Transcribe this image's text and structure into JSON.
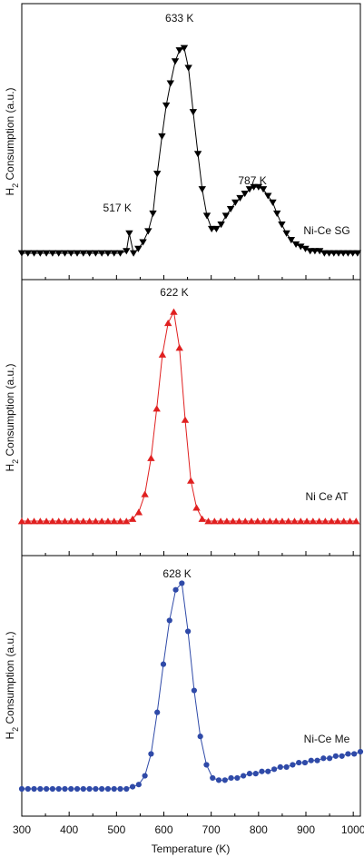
{
  "chart_data": {
    "type": "line",
    "xlabel": "Temperature (K)",
    "xlim": [
      300,
      1015
    ],
    "xticks": [
      300,
      400,
      500,
      600,
      700,
      800,
      900,
      1000
    ],
    "panels": [
      {
        "ylabel": "H2 Consumption (a.u.)",
        "ylim": [
          0,
          1
        ],
        "series": {
          "name": "Ni-Ce SG",
          "color": "#000000",
          "marker": "triangle-down",
          "x": [
            300,
            313,
            326,
            339,
            352,
            365,
            378,
            391,
            404,
            417,
            430,
            443,
            456,
            469,
            482,
            495,
            508,
            521,
            527,
            536,
            546,
            556,
            567,
            577,
            586,
            596,
            605,
            614,
            624,
            633,
            643,
            652,
            662,
            672,
            681,
            691,
            701,
            711,
            721,
            731,
            741,
            751,
            761,
            771,
            781,
            790,
            800,
            810,
            820,
            830,
            839,
            849,
            859,
            869,
            879,
            889,
            899,
            909,
            919,
            929,
            939,
            949,
            959,
            969,
            979,
            989,
            999,
            1009
          ],
          "y": [
            0,
            0,
            0,
            0,
            0,
            0,
            0,
            0,
            0,
            0,
            0,
            0,
            0,
            0,
            0,
            0,
            0,
            0.01,
            0.09,
            0,
            0.02,
            0.05,
            0.1,
            0.18,
            0.36,
            0.53,
            0.67,
            0.77,
            0.87,
            0.92,
            0.93,
            0.84,
            0.64,
            0.45,
            0.29,
            0.17,
            0.11,
            0.11,
            0.13,
            0.17,
            0.2,
            0.23,
            0.25,
            0.27,
            0.29,
            0.3,
            0.3,
            0.29,
            0.26,
            0.23,
            0.18,
            0.13,
            0.09,
            0.06,
            0.04,
            0.03,
            0.02,
            0.01,
            0.01,
            0.01,
            0,
            0,
            0,
            0,
            0,
            0,
            0,
            0
          ]
        },
        "labels": [
          {
            "text": "633 K",
            "x": 633
          },
          {
            "text": "517 K",
            "x": 517
          },
          {
            "text": "787 K",
            "x": 787
          },
          {
            "text": "Ni-Ce SG",
            "x": 950
          }
        ]
      },
      {
        "ylabel": "H2 Consumption (a.u.)",
        "ylim": [
          0,
          1
        ],
        "series": {
          "name": "Ni Ce AT",
          "color": "#e02020",
          "marker": "triangle-up",
          "x": [
            300,
            313,
            326,
            339,
            352,
            365,
            378,
            391,
            404,
            417,
            430,
            443,
            456,
            469,
            482,
            495,
            508,
            521,
            534,
            547,
            560,
            573,
            585,
            597,
            609,
            621,
            633,
            645,
            657,
            669,
            681,
            694,
            707,
            720,
            733,
            746,
            759,
            772,
            785,
            798,
            811,
            824,
            837,
            850,
            863,
            876,
            889,
            902,
            915,
            928,
            941,
            954,
            967,
            980,
            993,
            1006
          ],
          "y": [
            0,
            0,
            0,
            0,
            0,
            0,
            0,
            0,
            0,
            0,
            0,
            0,
            0,
            0,
            0,
            0,
            0,
            0,
            0.01,
            0.04,
            0.12,
            0.28,
            0.5,
            0.74,
            0.88,
            0.93,
            0.77,
            0.45,
            0.18,
            0.06,
            0.01,
            0,
            0,
            0,
            0,
            0,
            0,
            0,
            0,
            0,
            0,
            0,
            0,
            0,
            0,
            0,
            0,
            0,
            0,
            0,
            0,
            0,
            0,
            0,
            0,
            0
          ]
        },
        "labels": [
          {
            "text": "622 K",
            "x": 622
          },
          {
            "text": "Ni Ce AT",
            "x": 950
          }
        ]
      },
      {
        "ylabel": "H2 Consumption (a.u.)",
        "ylim": [
          0,
          1
        ],
        "series": {
          "name": "Ni-Ce Me",
          "color": "#2f4aa8",
          "marker": "circle",
          "x": [
            300,
            313,
            326,
            339,
            352,
            365,
            378,
            391,
            404,
            417,
            430,
            443,
            456,
            469,
            482,
            495,
            508,
            521,
            534,
            547,
            560,
            573,
            586,
            599,
            612,
            625,
            638,
            651,
            664,
            677,
            690,
            703,
            716,
            729,
            742,
            755,
            768,
            781,
            794,
            807,
            820,
            833,
            846,
            859,
            872,
            885,
            898,
            911,
            924,
            937,
            950,
            963,
            976,
            989,
            1002,
            1015
          ],
          "y": [
            0,
            0,
            0,
            0,
            0,
            0,
            0,
            0,
            0,
            0,
            0,
            0,
            0,
            0,
            0,
            0,
            0,
            0,
            0.01,
            0.02,
            0.06,
            0.16,
            0.35,
            0.57,
            0.77,
            0.91,
            0.94,
            0.72,
            0.45,
            0.24,
            0.11,
            0.05,
            0.04,
            0.04,
            0.05,
            0.05,
            0.06,
            0.07,
            0.07,
            0.08,
            0.08,
            0.09,
            0.1,
            0.1,
            0.11,
            0.12,
            0.12,
            0.13,
            0.13,
            0.14,
            0.14,
            0.15,
            0.15,
            0.16,
            0.16,
            0.17
          ]
        },
        "labels": [
          {
            "text": "628 K",
            "x": 628
          },
          {
            "text": "Ni-Ce Me",
            "x": 950
          }
        ]
      }
    ]
  }
}
